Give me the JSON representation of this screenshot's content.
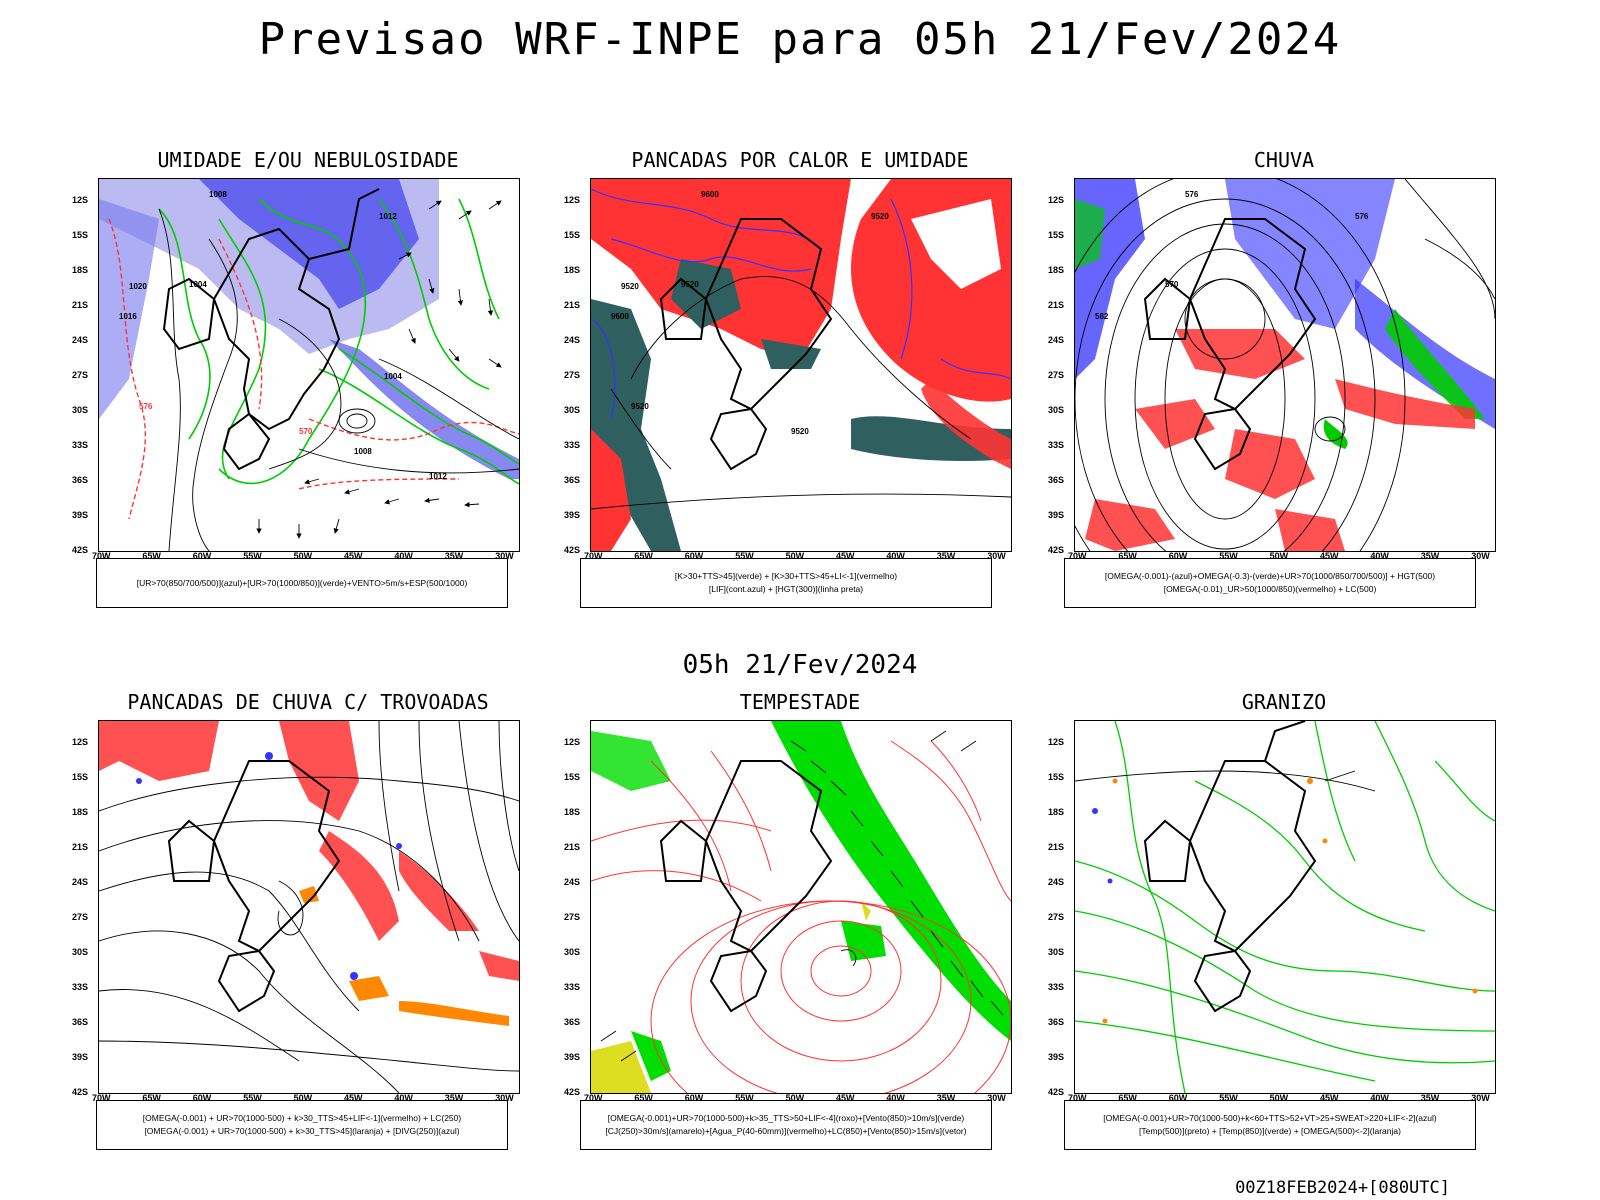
{
  "title": "Previsao WRF-INPE  para 05h 21/Fev/2024",
  "subtitle": "05h 21/Fev/2024",
  "footer": "00Z18FEB2024+[080UTC]",
  "axes": {
    "lat_labels": [
      "12S",
      "15S",
      "18S",
      "21S",
      "24S",
      "27S",
      "30S",
      "33S",
      "36S",
      "39S",
      "42S"
    ],
    "lon_labels": [
      "70W",
      "65W",
      "60W",
      "55W",
      "50W",
      "45W",
      "40W",
      "35W",
      "30W"
    ]
  },
  "colors": {
    "blue": "#3333ff",
    "light_blue": "#aaaaee",
    "green": "#00cc00",
    "red": "#ff3333",
    "dark_teal": "#2f5f5f",
    "orange": "#ff8800",
    "yellow": "#dddd22"
  },
  "panels": [
    {
      "title": "UMIDADE E/OU NEBULOSIDADE",
      "legend": [
        "[UR>70(850/700/500)](azul)+[UR>70(1000/850)](verde)+VENTO>5m/s+ESP(500/1000)"
      ],
      "map_labels": [
        "1008",
        "1004",
        "1012",
        "1016",
        "1020",
        "576",
        "570",
        "1004",
        "1008",
        "1012"
      ]
    },
    {
      "title": "PANCADAS POR CALOR E UMIDADE",
      "legend": [
        "[K>30+TTS>45](verde) + [K>30+TTS>45+LI<-1](vermelho)",
        "[LIF](cont.azul) + [HGT(300)](linha preta)"
      ],
      "map_labels": [
        "9600",
        "9520",
        "9520",
        "9600",
        "9520",
        "9520",
        "9520"
      ]
    },
    {
      "title": "CHUVA",
      "legend": [
        "[OMEGA(-0.001)-(azul)+OMEGA(-0.3)-(verde)+UR>70(1000/850/700/500)] + HGT(500)",
        "[OMEGA(-0.01)_UR>50(1000/850)(vermelho) + LC(500)"
      ],
      "map_labels": [
        "576",
        "570",
        "576",
        "582"
      ]
    },
    {
      "title": "PANCADAS DE CHUVA C/ TROVOADAS",
      "legend": [
        "[OMEGA(-0.001) + UR>70(1000-500) + k>30_TTS>45+LIF<-1](vermelho) + LC(250)",
        "[OMEGA(-0.001) + UR>70(1000-500) + k>30_TTS>45](laranja) + [DIVG(250)](azul)"
      ],
      "map_labels": []
    },
    {
      "title": "TEMPESTADE",
      "legend": [
        "[OMEGA(-0.001)+UR>70(1000-500)+k>35_TTS>50+LIF<-4](roxo)+[Vento(850)>10m/s](verde)",
        "[CJ(250)>30m/s](amarelo)+[Agua_P(40-60mm)](vermelho)+LC(850)+[Vento(850)>15m/s](vetor)"
      ],
      "map_labels": []
    },
    {
      "title": "GRANIZO",
      "legend": [
        "[OMEGA(-0.001)+UR>70(1000-500)+k<60+TTS>52+VT>25+SWEAT>220+LIF<-2](azul)",
        "[Temp(500)](preto) + [Temp(850)](verde) + [OMEGA(500)<-2](laranja)"
      ],
      "map_labels": []
    }
  ]
}
